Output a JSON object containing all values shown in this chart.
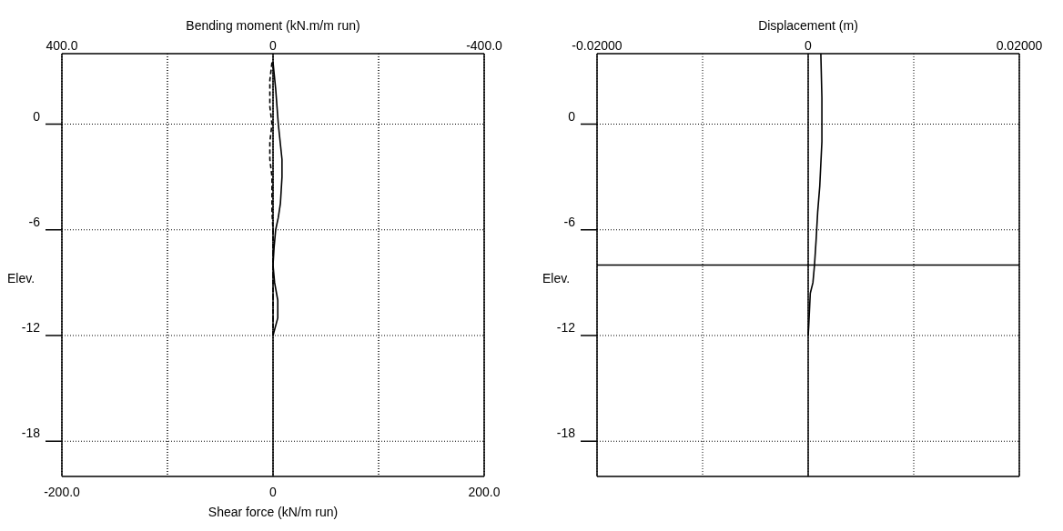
{
  "chart_data": [
    {
      "type": "line",
      "xlabel": "Shear force (kN/m run)",
      "x2label": "Bending moment (kN.m/m run)",
      "ylabel": "Elev.",
      "xlim": [
        -200,
        200
      ],
      "xticks": [
        {
          "value": -200,
          "label": "-200.0"
        },
        {
          "value": -100,
          "label": null
        },
        0,
        {
          "value": 100,
          "label": null
        },
        {
          "value": 200,
          "label": "200.0"
        }
      ],
      "x2lim": [
        400,
        -400
      ],
      "x2ticks": [
        {
          "value": 400,
          "label": "400.0"
        },
        {
          "value": 200,
          "label": null
        },
        0,
        {
          "value": -200,
          "label": null
        },
        {
          "value": -400,
          "label": "-400.0"
        }
      ],
      "ylim": [
        -20,
        4
      ],
      "yticks": [
        0,
        -6,
        -12,
        -18
      ],
      "grid": true,
      "ref_lines": [
        {
          "axis": "x",
          "value": 0
        }
      ],
      "series": [
        {
          "color": "#000000",
          "axis": "x2",
          "line_style": "solid",
          "x": [
            0,
            -5,
            -10,
            -17,
            -17,
            -14,
            -10,
            -5,
            -2,
            0,
            -3,
            -9,
            -9,
            0
          ],
          "values": [
            3.5,
            2,
            0,
            -2,
            -3,
            -4.5,
            -5.3,
            -6,
            -7,
            -8,
            -9,
            -10,
            -11,
            -12
          ]
        },
        {
          "color": "#000000",
          "line_style": "dashed",
          "x": [
            -1,
            -3,
            -3,
            -1,
            -3,
            -3,
            -1,
            -1,
            -1,
            0,
            0,
            0,
            0
          ],
          "values": [
            3.5,
            2.5,
            1,
            0,
            -1,
            -2,
            -3,
            -4,
            -5,
            -6,
            -8,
            -10,
            -12
          ]
        }
      ]
    },
    {
      "type": "line",
      "xlabel": "Displacement (m)",
      "ylabel": "Elev.",
      "xlim": [
        -0.02,
        0.02
      ],
      "xticks": [
        {
          "value": -0.02,
          "label": "-0.02000"
        },
        {
          "value": -0.01,
          "label": null
        },
        0,
        {
          "value": 0.01,
          "label": null
        },
        {
          "value": 0.02,
          "label": "0.02000"
        }
      ],
      "ylim": [
        -20,
        4
      ],
      "yticks": [
        0,
        -6,
        -12,
        -18
      ],
      "grid": true,
      "ref_lines": [
        {
          "axis": "x",
          "value": 0
        },
        {
          "axis": "y",
          "value": -8
        }
      ],
      "series": [
        {
          "color": "#000000",
          "line_style": "solid",
          "x": [
            0.0012,
            0.0013,
            0.0013,
            0.0011,
            0.0009,
            0.00075,
            0.0006,
            0.00045,
            0.0002,
            5e-05,
            0
          ],
          "values": [
            4,
            1.5,
            -1,
            -3.5,
            -5,
            -6.6,
            -8,
            -9,
            -9.6,
            -11.5,
            -12
          ]
        }
      ]
    }
  ]
}
